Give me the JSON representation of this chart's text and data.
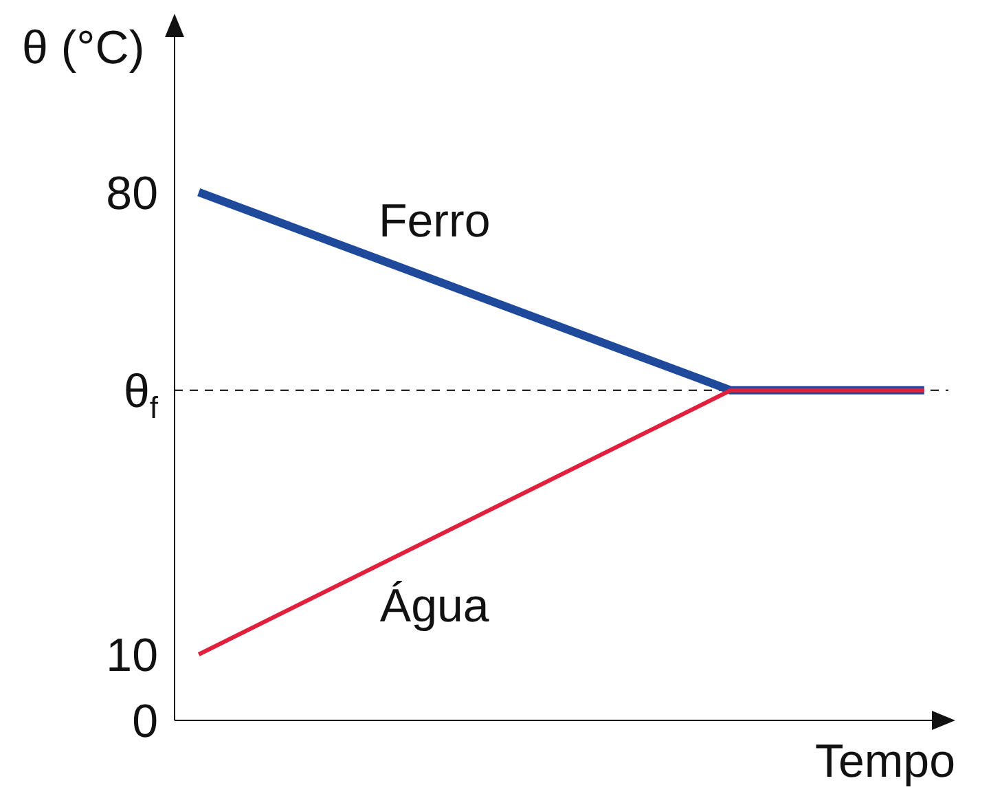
{
  "chart_data": {
    "type": "line",
    "xlabel": "Tempo",
    "ylabel": "θ (°C)",
    "ylim": [
      0,
      106
    ],
    "yticks": [
      0,
      10,
      {
        "value": 50,
        "label": "θ$_{f}$"
      },
      80
    ],
    "tick_labels": "y",
    "marker": "none",
    "line_style": "solid",
    "categories": [
      null,
      null,
      null,
      null,
      null,
      null,
      null,
      null,
      null,
      null,
      null,
      null,
      null,
      null,
      null,
      null
    ],
    "series": [
      {
        "name": "Ferro",
        "color": "#1f4a9c",
        "values": [
          80,
          null,
          null,
          null,
          null,
          null,
          null,
          null,
          null,
          null,
          null,
          50,
          null,
          null,
          null,
          50
        ]
      },
      {
        "name": "Água",
        "color": "#e0203c",
        "values": [
          10,
          null,
          null,
          null,
          null,
          null,
          null,
          null,
          null,
          null,
          null,
          50,
          null,
          null,
          null,
          50
        ]
      }
    ],
    "ref_lines": [
      {
        "axis": "y",
        "value": 50,
        "color": "#000000",
        "line_style": "dashed"
      }
    ]
  }
}
